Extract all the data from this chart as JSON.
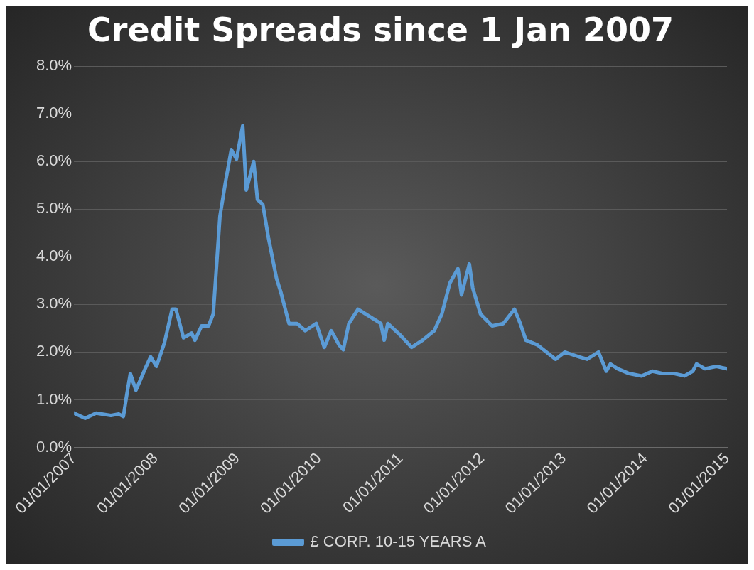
{
  "chart_data": {
    "type": "line",
    "title": "Credit Spreads since 1 Jan 2007",
    "x": [
      "2007-01-01",
      "2007-02-20",
      "2007-04-10",
      "2007-06-15",
      "2007-07-20",
      "2007-08-10",
      "2007-08-25",
      "2007-09-10",
      "2007-10-05",
      "2007-11-20",
      "2007-12-10",
      "2008-01-05",
      "2008-02-10",
      "2008-03-15",
      "2008-04-01",
      "2008-05-05",
      "2008-06-10",
      "2008-06-25",
      "2008-07-25",
      "2008-08-25",
      "2008-09-15",
      "2008-10-15",
      "2008-11-10",
      "2008-12-05",
      "2008-12-28",
      "2009-01-25",
      "2009-02-10",
      "2009-03-15",
      "2009-04-01",
      "2009-04-25",
      "2009-05-20",
      "2009-06-25",
      "2009-07-15",
      "2009-08-20",
      "2009-09-25",
      "2009-11-01",
      "2009-12-20",
      "2010-01-25",
      "2010-02-25",
      "2010-04-01",
      "2010-04-20",
      "2010-05-15",
      "2010-06-25",
      "2010-08-15",
      "2010-10-05",
      "2010-10-20",
      "2010-11-05",
      "2011-01-01",
      "2011-02-20",
      "2011-04-10",
      "2011-06-01",
      "2011-07-05",
      "2011-08-10",
      "2011-09-15",
      "2011-10-01",
      "2011-11-05",
      "2011-11-20",
      "2011-12-25",
      "2012-02-15",
      "2012-04-05",
      "2012-05-25",
      "2012-06-20",
      "2012-07-15",
      "2012-09-05",
      "2012-11-25",
      "2013-01-05",
      "2013-03-10",
      "2013-04-15",
      "2013-06-05",
      "2013-07-10",
      "2013-07-28",
      "2013-08-30",
      "2013-10-20",
      "2013-12-15",
      "2014-02-01",
      "2014-03-20",
      "2014-05-10",
      "2014-06-25",
      "2014-08-01",
      "2014-08-18",
      "2014-09-25",
      "2014-11-15",
      "2015-01-01"
    ],
    "series": [
      {
        "name": "£ CORP. 10-15 YEARS A",
        "color": "#5b9bd5",
        "values": [
          0.72,
          0.61,
          0.72,
          0.67,
          0.7,
          0.65,
          1.1,
          1.55,
          1.2,
          1.7,
          1.9,
          1.7,
          2.2,
          2.9,
          2.9,
          2.3,
          2.4,
          2.25,
          2.55,
          2.55,
          2.8,
          4.85,
          5.6,
          6.25,
          6.05,
          6.75,
          5.4,
          6.0,
          5.2,
          5.1,
          4.4,
          3.55,
          3.25,
          2.6,
          2.6,
          2.45,
          2.6,
          2.1,
          2.45,
          2.15,
          2.05,
          2.6,
          2.9,
          2.75,
          2.6,
          2.25,
          2.6,
          2.35,
          2.1,
          2.25,
          2.45,
          2.8,
          3.45,
          3.75,
          3.2,
          3.85,
          3.35,
          2.8,
          2.55,
          2.6,
          2.9,
          2.6,
          2.25,
          2.15,
          1.85,
          2.0,
          1.9,
          1.85,
          2.0,
          1.6,
          1.75,
          1.65,
          1.55,
          1.5,
          1.6,
          1.55,
          1.55,
          1.5,
          1.6,
          1.75,
          1.65,
          1.7,
          1.65
        ]
      }
    ],
    "xlim": [
      "2007-01-01",
      "2015-01-01"
    ],
    "xticks": [
      {
        "value": "2007-01-01",
        "label": "01/01/2007"
      },
      {
        "value": "2008-01-01",
        "label": "01/01/2008"
      },
      {
        "value": "2009-01-01",
        "label": "01/01/2009"
      },
      {
        "value": "2010-01-01",
        "label": "01/01/2010"
      },
      {
        "value": "2011-01-01",
        "label": "01/01/2011"
      },
      {
        "value": "2012-01-01",
        "label": "01/01/2012"
      },
      {
        "value": "2013-01-01",
        "label": "01/01/2013"
      },
      {
        "value": "2014-01-01",
        "label": "01/01/2014"
      },
      {
        "value": "2015-01-01",
        "label": "01/01/2015"
      }
    ],
    "ylim": [
      0,
      8
    ],
    "yticks": [
      {
        "value": 0,
        "label": "0.0%"
      },
      {
        "value": 1,
        "label": "1.0%"
      },
      {
        "value": 2,
        "label": "2.0%"
      },
      {
        "value": 3,
        "label": "3.0%"
      },
      {
        "value": 4,
        "label": "4.0%"
      },
      {
        "value": 5,
        "label": "5.0%"
      },
      {
        "value": 6,
        "label": "6.0%"
      },
      {
        "value": 7,
        "label": "7.0%"
      },
      {
        "value": 8,
        "label": "8.0%"
      }
    ],
    "grid": "y",
    "legend": "bottom",
    "marker": "none",
    "line_style": "solid"
  }
}
